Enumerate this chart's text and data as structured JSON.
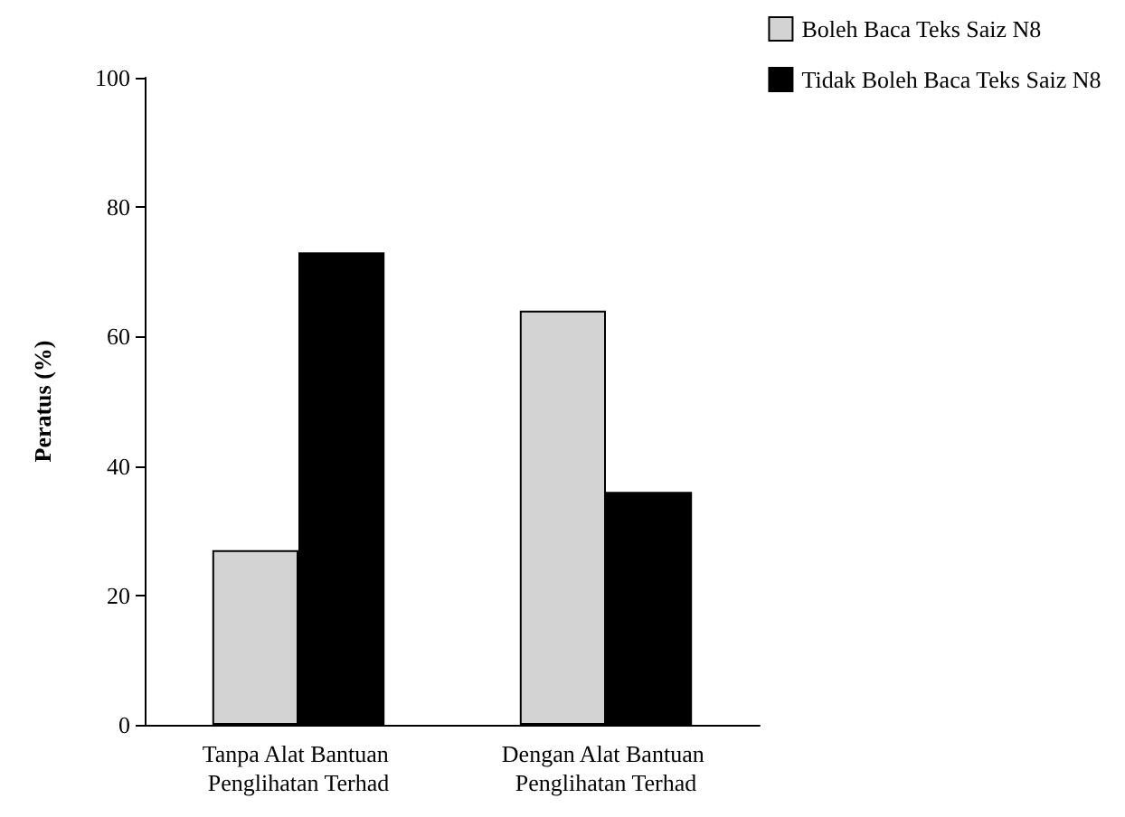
{
  "chart_data": {
    "type": "bar",
    "ylabel": "Peratus (%)",
    "categories": [
      "Tanpa Alat Bantuan Penglihatan Terhad",
      "Dengan Alat Bantuan Penglihatan Terhad"
    ],
    "series": [
      {
        "name": "Boleh Baca Teks Saiz N8",
        "color": "#d3d3d3",
        "values": [
          27,
          64
        ]
      },
      {
        "name": "Tidak Boleh Baca Teks Saiz N8",
        "color": "#000000",
        "values": [
          73,
          36
        ]
      }
    ],
    "ylim": [
      0,
      100
    ],
    "yticks": [
      0,
      20,
      40,
      60,
      80,
      100
    ],
    "grid": false,
    "legend": "top right"
  }
}
